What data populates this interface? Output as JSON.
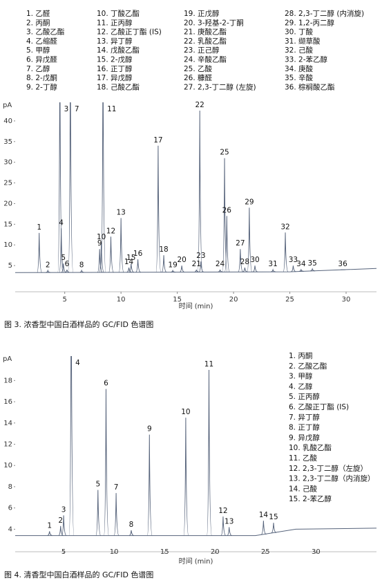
{
  "chart_data": [
    {
      "type": "line",
      "y_label": "pA",
      "x_label": "时间 (min)",
      "caption": "图 3. 浓香型中国白酒样品的 GC/FID 色谱图",
      "color": "#55627a",
      "compounds": [
        "1.  乙醛",
        "2.  丙酮",
        "3.  乙酸乙酯",
        "4.  乙缩醛",
        "5.  甲醇",
        "6.  异戊醛",
        "7.  乙醇",
        "8.  2-戊酮",
        "9.  2-丁醇",
        "10. 丁酸乙酯",
        "11. 正丙醇",
        "12. 乙酸正丁酯 (IS)",
        "13. 异丁醇",
        "14. 戊酸乙酯",
        "15. 2-戊醇",
        "16. 正丁醇",
        "17. 异戊醇",
        "18. 己酸乙酯",
        "19. 正戊醇",
        "20. 3-羟基-2-丁酮",
        "21. 庚酸乙酯",
        "22. 乳酸乙酯",
        "23. 正己醇",
        "24. 辛酸乙酯",
        "25. 乙酸",
        "26. 糠醛",
        "27. 2,3-丁二醇 (左旋)",
        "28. 2,3-丁二醇 (内消旋)",
        "29. 1,2-丙二醇",
        "30. 丁酸",
        "31. 缬草酸",
        "32. 己酸",
        "33. 2-苯乙醇",
        "34. 庚酸",
        "35. 辛酸",
        "36. 棕榈酸乙酯"
      ],
      "peak_labels": [
        "1",
        "2",
        "3",
        "4",
        "5",
        "6",
        "7",
        "8",
        "9",
        "10",
        "11",
        "12",
        "13",
        "14",
        "15",
        "16",
        "17",
        "18",
        "19",
        "20",
        "21",
        "22",
        "23",
        "24",
        "25",
        "26",
        "27",
        "28",
        "29",
        "30",
        "31",
        "32",
        "33",
        "34",
        "35",
        "36"
      ],
      "x": [
        2.73,
        3.5,
        4.57,
        4.69,
        4.88,
        5.2,
        5.5,
        6.5,
        8.1,
        8.25,
        8.4,
        9.1,
        10.0,
        10.7,
        10.9,
        11.5,
        13.3,
        13.8,
        14.6,
        15.4,
        16.7,
        17.0,
        17.1,
        18.8,
        19.2,
        19.4,
        20.6,
        21.0,
        21.4,
        21.9,
        23.5,
        24.6,
        25.3,
        26.0,
        27.0,
        29.7
      ],
      "values": [
        12.9,
        3.8,
        60,
        14,
        5.5,
        4,
        60,
        3.8,
        9,
        10.5,
        60,
        12,
        16.5,
        4.5,
        5.5,
        6.5,
        34,
        7.5,
        3.8,
        5,
        4,
        42.5,
        6,
        4,
        31,
        17,
        9,
        4.5,
        19,
        5,
        4,
        13,
        5,
        4,
        4.2,
        4
      ],
      "baseline_x": [
        0.6,
        25,
        32.7
      ],
      "baseline": [
        3.3,
        3.5,
        4.3
      ],
      "xlim": [
        0.6,
        32.7
      ],
      "ylim": [
        0,
        44.5
      ],
      "xticks": [
        5,
        10,
        15,
        20,
        25,
        30
      ],
      "yticks": [
        5,
        10,
        15,
        20,
        25,
        30,
        35,
        40
      ]
    },
    {
      "type": "line",
      "y_label": "pA",
      "x_label": "时间 (min)",
      "caption": "图 4. 清香型中国白酒样品的 GC/FID 色谱图",
      "color": "#55627a",
      "compounds": [
        "1.  丙酮",
        "2.  乙酸乙酯",
        "3.  甲醇",
        "4.  乙醇",
        "5.  正丙醇",
        "6.  乙酸正丁酯 (IS)",
        "7.  异丁醇",
        "8.  正丁醇",
        "9.  异戊醇",
        "10. 乳酸乙酯",
        "11. 乙酸",
        "12. 2,3-丁二醇（左旋）",
        "13. 2,3-丁二醇（内消旋）",
        "14. 己酸",
        "15. 2-苯乙醇"
      ],
      "peak_labels": [
        "1",
        "2",
        "3",
        "4",
        "5",
        "6",
        "7",
        "8",
        "9",
        "10",
        "11",
        "12",
        "13",
        "14",
        "15"
      ],
      "x": [
        3.6,
        4.7,
        5.0,
        5.75,
        8.4,
        9.2,
        10.2,
        11.7,
        13.5,
        17.1,
        19.4,
        20.8,
        21.4,
        24.8,
        25.8
      ],
      "values": [
        3.8,
        4.3,
        5.3,
        30,
        7.7,
        17.2,
        7.4,
        3.9,
        12.9,
        14.5,
        19,
        5.2,
        4.2,
        4.8,
        4.6
      ],
      "baseline_x": [
        0.2,
        24,
        28,
        36
      ],
      "baseline": [
        3.4,
        3.4,
        4.0,
        4.1
      ],
      "xlim": [
        0.2,
        36
      ],
      "ylim": [
        2.4,
        20.3
      ],
      "xticks": [
        5,
        10,
        15,
        20,
        25,
        30
      ],
      "yticks": [
        4,
        6,
        8,
        10,
        12,
        14,
        16,
        18
      ]
    }
  ]
}
